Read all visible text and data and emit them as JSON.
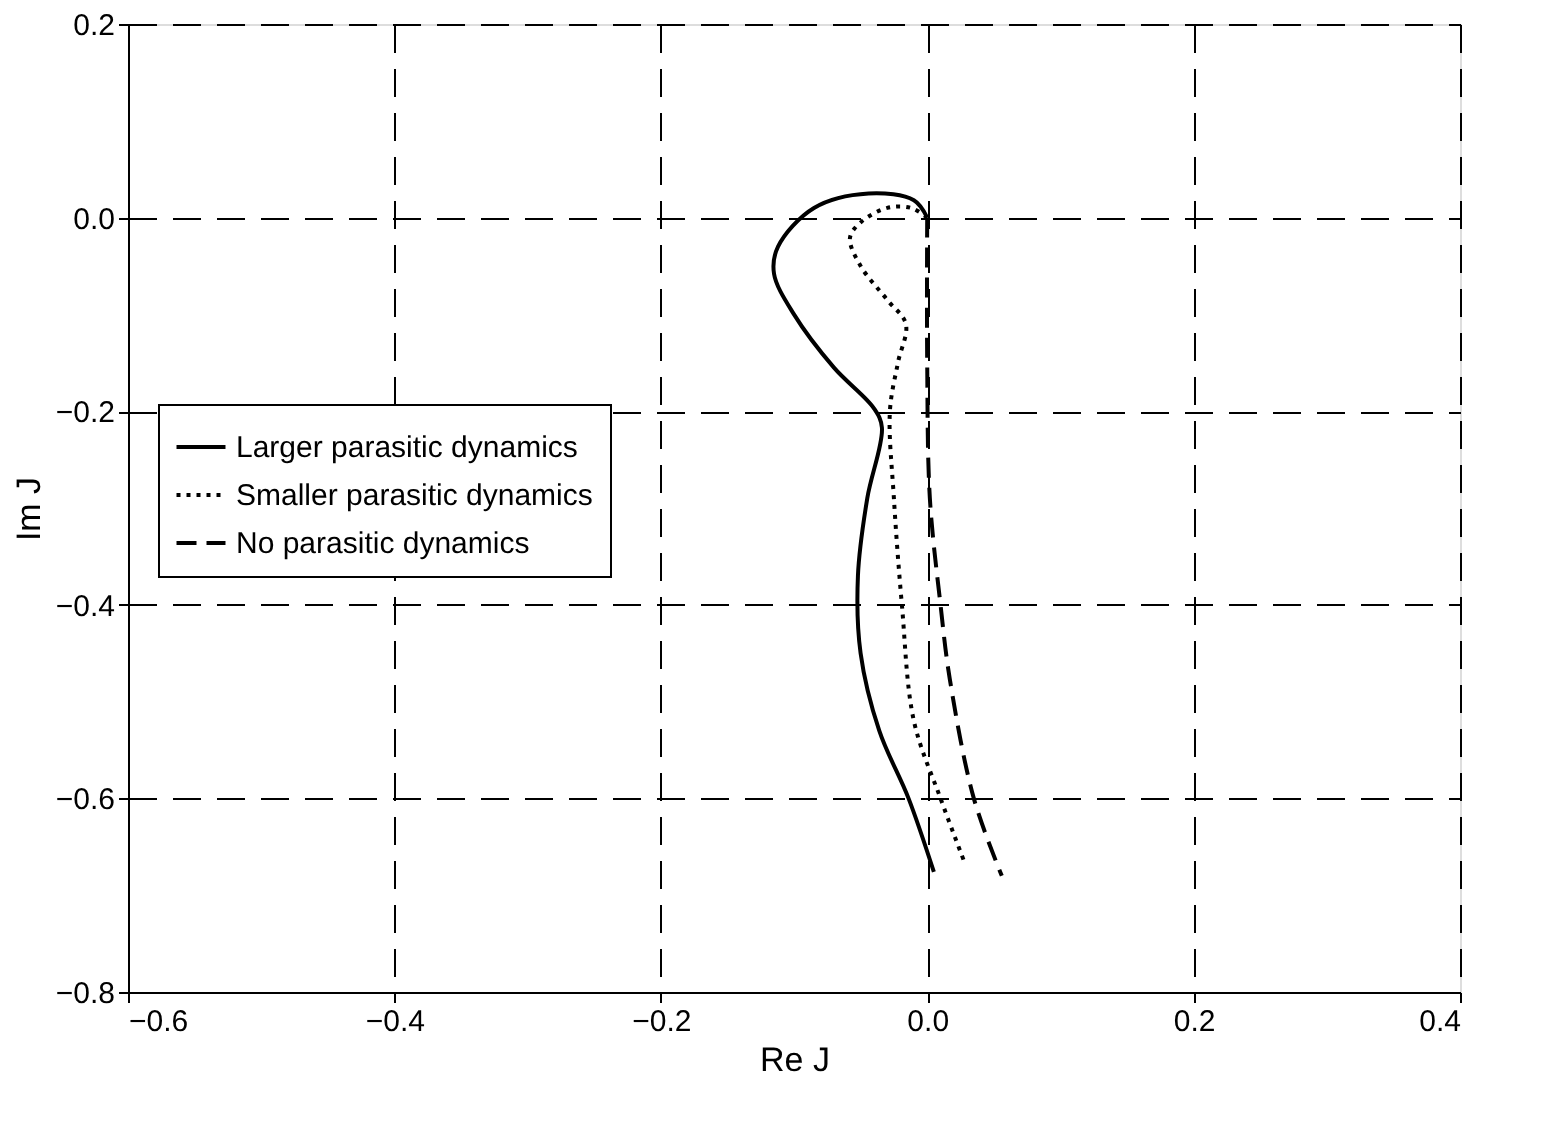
{
  "chart_data": {
    "type": "line",
    "xlabel": "Re J",
    "ylabel": "Im J",
    "xlim": [
      -0.6,
      0.4
    ],
    "xticks": [
      -0.6,
      -0.4,
      -0.2,
      {
        "value": 0,
        "label": "0.0"
      },
      0.2,
      0.4
    ],
    "ylim": [
      -0.8,
      0.2
    ],
    "yticks": [
      -0.8,
      -0.6,
      -0.4,
      -0.2,
      {
        "value": 0,
        "label": "0.0"
      },
      0.2
    ],
    "grid": true,
    "legend": "left",
    "marker": "none",
    "series": [
      {
        "name": "Larger parasitic dynamics",
        "color": "#000000",
        "line_style": "solid",
        "x": [
          0.0,
          -0.01,
          -0.044,
          -0.085,
          -0.112,
          -0.115,
          -0.1,
          -0.07,
          -0.04,
          -0.034,
          -0.045,
          -0.052,
          -0.05,
          -0.036,
          -0.014,
          0.005
        ],
        "values": [
          0.0,
          0.018,
          0.025,
          0.01,
          -0.03,
          -0.058,
          -0.1,
          -0.155,
          -0.197,
          -0.217,
          -0.29,
          -0.37,
          -0.45,
          -0.53,
          -0.6,
          -0.676
        ]
      },
      {
        "name": "Smaller parasitic dynamics",
        "color": "#000000",
        "line_style": "dotted",
        "x": [
          0.0,
          -0.012,
          -0.03,
          -0.05,
          -0.058,
          -0.05,
          -0.03,
          -0.016,
          -0.022,
          -0.028,
          -0.025,
          -0.019,
          -0.01,
          0.01,
          0.028
        ],
        "values": [
          0.0,
          0.01,
          0.01,
          -0.005,
          -0.021,
          -0.05,
          -0.085,
          -0.11,
          -0.15,
          -0.2,
          -0.29,
          -0.4,
          -0.52,
          -0.6,
          -0.666
        ]
      },
      {
        "name": "No parasitic dynamics",
        "color": "#000000",
        "line_style": "dashed",
        "x": [
          0.0,
          0.0,
          0.002,
          0.01,
          0.017,
          0.035,
          0.056
        ],
        "values": [
          0.0,
          -0.15,
          -0.29,
          -0.4,
          -0.477,
          -0.6,
          -0.68
        ]
      }
    ]
  }
}
